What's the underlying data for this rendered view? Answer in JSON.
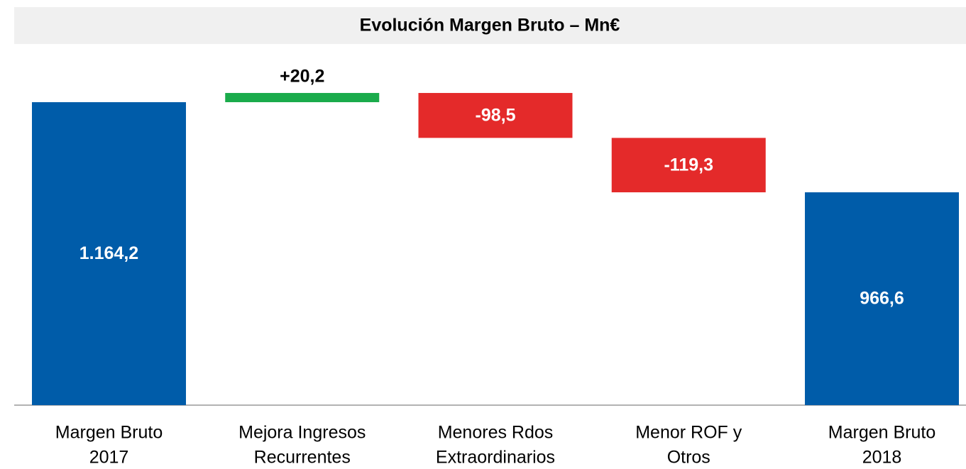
{
  "chart_data": {
    "type": "waterfall",
    "title": "Evolución Margen Bruto – Mn€",
    "categories": [
      [
        "Margen Bruto",
        "2017"
      ],
      [
        "Mejora Ingresos",
        "Recurrentes"
      ],
      [
        "Menores Rdos",
        "Extraordinarios"
      ],
      [
        "Menor ROF y",
        "Otros"
      ],
      [
        "Margen Bruto",
        "2018"
      ]
    ],
    "values": [
      1164.2,
      20.2,
      -98.5,
      -119.3,
      966.6
    ],
    "value_labels": [
      "1.164,2",
      "+20,2",
      "-98,5",
      "-119,3",
      "966,6"
    ],
    "colors": [
      "#005ca9",
      "#1aab4b",
      "#e42a2a",
      "#e42a2a",
      "#005ca9"
    ],
    "ylim": [
      500,
      1200
    ]
  }
}
